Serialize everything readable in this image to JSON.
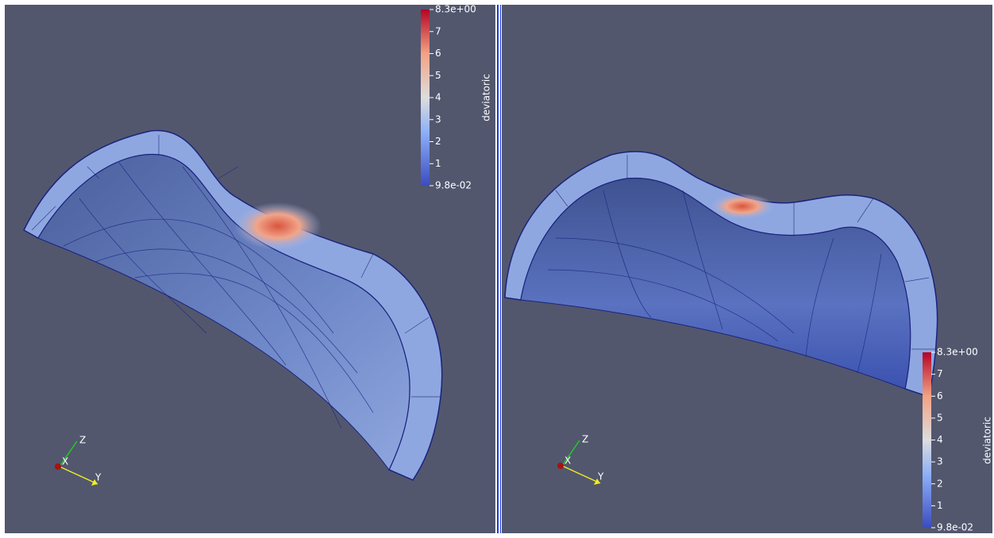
{
  "views": [
    {
      "colorbar": {
        "title": "deviatoric",
        "labels": [
          "8.3e+00",
          "7",
          "6",
          "5",
          "4",
          "3",
          "2",
          "1",
          "9.8e-02"
        ]
      },
      "axes": {
        "x": "X",
        "y": "Y",
        "z": "Z"
      }
    },
    {
      "colorbar": {
        "title": "deviatoric",
        "labels": [
          "8.3e+00",
          "7",
          "6",
          "5",
          "4",
          "3",
          "2",
          "1",
          "9.8e-02"
        ]
      },
      "axes": {
        "x": "X",
        "y": "Y",
        "z": "Z"
      }
    }
  ]
}
